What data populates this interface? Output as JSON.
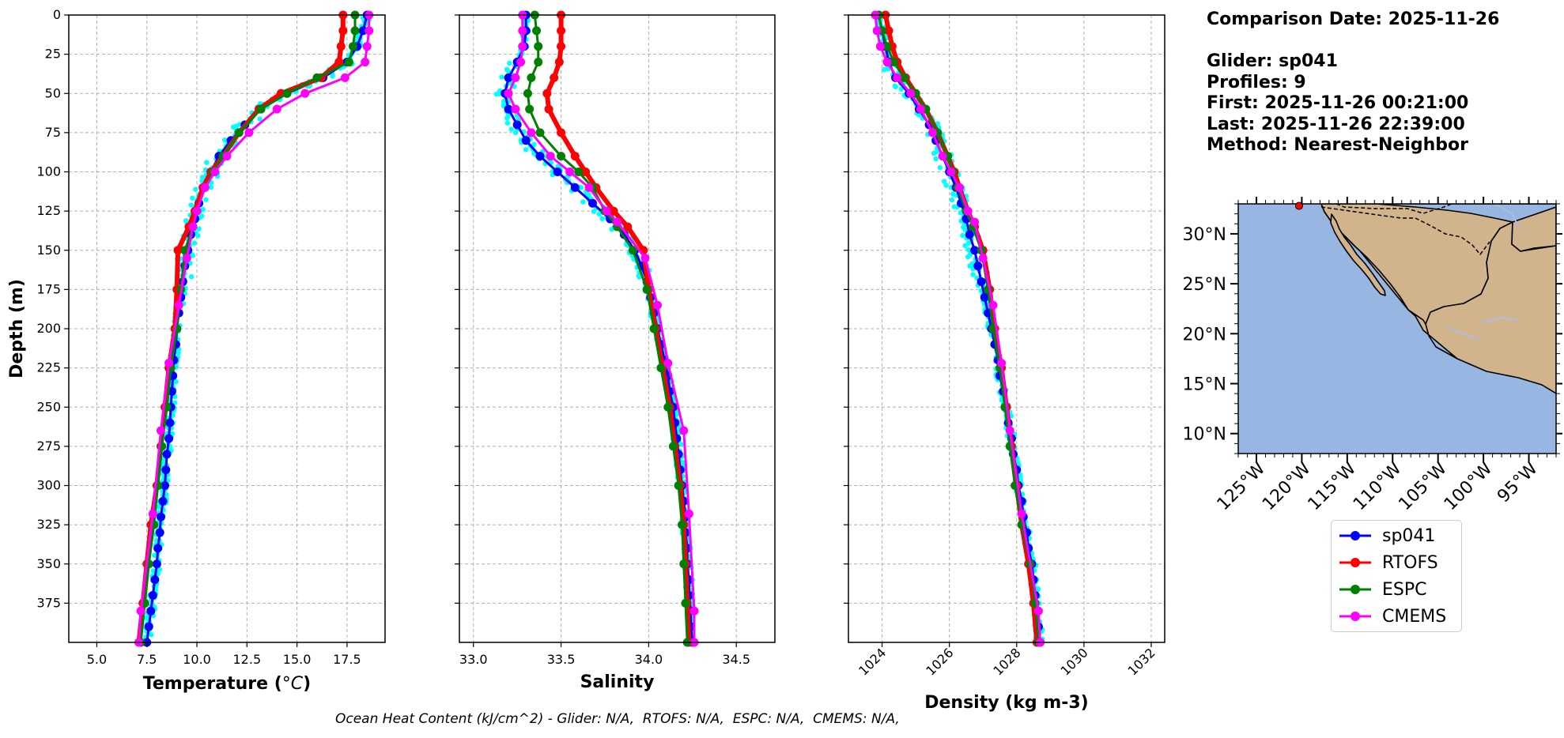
{
  "info": {
    "comparison_date": "Comparison Date: 2025-11-26",
    "glider": "Glider: sp041",
    "profiles": "Profiles: 9",
    "first": "First: 2025-11-26 00:21:00",
    "last": "Last: 2025-11-26 22:39:00",
    "method": "Method: Nearest-Neighbor"
  },
  "footer": "Ocean Heat Content (kJ/cm^2) - Glider: N/A,  RTOFS: N/A,  ESPC: N/A,  CMEMS: N/A,",
  "colors": {
    "sp041": "#0000ff",
    "sp041_raw": "#00ffff",
    "rtofs": "#ff0000",
    "espc": "#008000",
    "cmems": "#ff00ff",
    "ocean": "#97b6e1",
    "land": "#d2b48c",
    "grid": "#b0b0b0"
  },
  "legend": [
    {
      "label": "sp041",
      "color": "#0000ff"
    },
    {
      "label": "RTOFS",
      "color": "#ff0000"
    },
    {
      "label": "ESPC",
      "color": "#008000"
    },
    {
      "label": "CMEMS",
      "color": "#ff00ff"
    }
  ],
  "chart_data": [
    {
      "type": "line",
      "xlabel": "Temperature (°C)",
      "ylabel": "Depth (m)",
      "xlim": [
        3.6,
        19.4
      ],
      "ylim": [
        400,
        0
      ],
      "xticks": [
        5.0,
        7.5,
        10.0,
        12.5,
        15.0,
        17.5
      ],
      "xtick_labels": [
        "5.0",
        "7.5",
        "10.0",
        "12.5",
        "15.0",
        "17.5"
      ],
      "yticks": [
        0,
        25,
        50,
        75,
        100,
        125,
        150,
        175,
        200,
        225,
        250,
        275,
        300,
        325,
        350,
        375
      ],
      "grid": true,
      "series": [
        {
          "name": "sp041",
          "depth": [
            0,
            10,
            20,
            30,
            40,
            50,
            60,
            70,
            80,
            90,
            100,
            110,
            120,
            130,
            140,
            150,
            160,
            170,
            180,
            190,
            200,
            210,
            220,
            230,
            240,
            250,
            260,
            270,
            280,
            290,
            300,
            310,
            320,
            330,
            340,
            350,
            360,
            370,
            380,
            390,
            400
          ],
          "values": [
            18.5,
            18.3,
            18.0,
            17.5,
            16.3,
            14.5,
            13.2,
            12.4,
            11.7,
            11.1,
            10.7,
            10.4,
            10.1,
            9.9,
            9.7,
            9.55,
            9.4,
            9.3,
            9.2,
            9.1,
            9.0,
            8.95,
            8.85,
            8.8,
            8.75,
            8.7,
            8.65,
            8.6,
            8.5,
            8.45,
            8.4,
            8.3,
            8.2,
            8.15,
            8.05,
            8.0,
            7.9,
            7.8,
            7.7,
            7.6,
            7.5
          ]
        },
        {
          "name": "RTOFS",
          "depth": [
            0,
            10,
            20,
            30,
            40,
            50,
            60,
            75,
            90,
            100,
            110,
            125,
            135,
            150,
            175,
            200,
            225,
            250,
            275,
            300,
            325,
            350,
            375,
            400
          ],
          "values": [
            17.3,
            17.3,
            17.2,
            17.1,
            16.2,
            14.2,
            13.1,
            12.1,
            11.3,
            10.7,
            10.3,
            9.9,
            9.6,
            9.05,
            9.0,
            8.9,
            8.6,
            8.4,
            8.2,
            8.0,
            7.7,
            7.5,
            7.3,
            7.1
          ]
        },
        {
          "name": "ESPC",
          "depth": [
            0,
            10,
            20,
            30,
            40,
            50,
            60,
            75,
            90,
            100,
            110,
            125,
            135,
            150,
            175,
            200,
            225,
            250,
            275,
            300,
            325,
            350,
            375,
            400
          ],
          "values": [
            17.9,
            17.9,
            17.8,
            17.6,
            16.0,
            14.5,
            13.2,
            12.1,
            11.3,
            10.8,
            10.4,
            10.0,
            9.8,
            9.4,
            9.2,
            9.0,
            8.7,
            8.5,
            8.25,
            8.05,
            7.85,
            7.6,
            7.4,
            7.2
          ]
        },
        {
          "name": "CMEMS",
          "depth": [
            0,
            10,
            20,
            30,
            40,
            50,
            60,
            75,
            90,
            100,
            110,
            125,
            135,
            155,
            185,
            222,
            265,
            318,
            380,
            400
          ],
          "values": [
            18.6,
            18.6,
            18.5,
            18.4,
            17.4,
            15.4,
            14.0,
            12.6,
            11.5,
            10.9,
            10.4,
            10.0,
            9.8,
            9.5,
            9.1,
            8.6,
            8.2,
            7.8,
            7.2,
            7.1
          ]
        }
      ]
    },
    {
      "type": "line",
      "xlabel": "Salinity",
      "ylabel": "",
      "xlim": [
        32.92,
        34.72
      ],
      "ylim": [
        400,
        0
      ],
      "xticks": [
        33.0,
        33.5,
        34.0,
        34.5
      ],
      "xtick_labels": [
        "33.0",
        "33.5",
        "34.0",
        "34.5"
      ],
      "grid": true,
      "series": [
        {
          "name": "sp041",
          "depth": [
            0,
            10,
            20,
            30,
            40,
            50,
            60,
            70,
            80,
            90,
            100,
            110,
            120,
            130,
            140,
            150,
            160,
            170,
            180,
            190,
            200,
            210,
            220,
            230,
            240,
            250,
            260,
            270,
            280,
            290,
            300,
            310,
            320,
            330,
            340,
            350,
            360,
            370,
            380,
            390,
            400
          ],
          "values": [
            33.3,
            33.3,
            33.29,
            33.25,
            33.2,
            33.18,
            33.2,
            33.25,
            33.3,
            33.38,
            33.48,
            33.58,
            33.68,
            33.78,
            33.86,
            33.92,
            33.96,
            33.99,
            34.01,
            34.03,
            34.05,
            34.07,
            34.09,
            34.11,
            34.12,
            34.14,
            34.15,
            34.16,
            34.17,
            34.18,
            34.19,
            34.2,
            34.21,
            34.21,
            34.22,
            34.22,
            34.23,
            34.23,
            34.24,
            34.24,
            34.25
          ]
        },
        {
          "name": "RTOFS",
          "depth": [
            0,
            10,
            20,
            30,
            40,
            50,
            60,
            75,
            90,
            100,
            110,
            125,
            135,
            150,
            175,
            200,
            225,
            250,
            275,
            300,
            325,
            350,
            375,
            400
          ],
          "values": [
            33.5,
            33.5,
            33.5,
            33.49,
            33.46,
            33.42,
            33.43,
            33.5,
            33.58,
            33.64,
            33.7,
            33.8,
            33.88,
            33.97,
            34.0,
            34.04,
            34.08,
            34.12,
            34.15,
            34.18,
            34.2,
            34.21,
            34.22,
            34.23
          ]
        },
        {
          "name": "ESPC",
          "depth": [
            0,
            10,
            20,
            30,
            40,
            50,
            60,
            75,
            90,
            100,
            110,
            125,
            135,
            150,
            175,
            200,
            225,
            250,
            275,
            300,
            325,
            350,
            375,
            400
          ],
          "values": [
            33.35,
            33.36,
            33.37,
            33.37,
            33.33,
            33.31,
            33.32,
            33.38,
            33.5,
            33.6,
            33.68,
            33.75,
            33.82,
            33.91,
            33.99,
            34.03,
            34.07,
            34.11,
            34.14,
            34.17,
            34.19,
            34.2,
            34.21,
            34.22
          ]
        },
        {
          "name": "CMEMS",
          "depth": [
            0,
            10,
            20,
            30,
            40,
            50,
            60,
            75,
            90,
            100,
            110,
            125,
            132,
            155,
            185,
            222,
            265,
            318,
            380,
            400
          ],
          "values": [
            33.28,
            33.28,
            33.28,
            33.27,
            33.24,
            33.2,
            33.24,
            33.33,
            33.44,
            33.55,
            33.66,
            33.76,
            33.82,
            33.98,
            34.05,
            34.11,
            34.2,
            34.23,
            34.26,
            34.26
          ]
        }
      ]
    },
    {
      "type": "line",
      "xlabel": "Density (kg m-3)",
      "ylabel": "",
      "xlim": [
        1023.0,
        1032.4
      ],
      "ylim": [
        400,
        0
      ],
      "xticks": [
        1024,
        1026,
        1028,
        1030,
        1032
      ],
      "xtick_labels": [
        "1024",
        "1026",
        "1028",
        "1030",
        "1032"
      ],
      "grid": true,
      "series": [
        {
          "name": "sp041",
          "depth": [
            0,
            10,
            20,
            30,
            40,
            50,
            60,
            70,
            80,
            90,
            100,
            110,
            120,
            130,
            140,
            150,
            160,
            170,
            180,
            190,
            200,
            210,
            220,
            230,
            240,
            250,
            260,
            270,
            280,
            290,
            300,
            310,
            320,
            330,
            340,
            350,
            360,
            370,
            380,
            390,
            400
          ],
          "values": [
            1023.9,
            1024.0,
            1024.1,
            1024.2,
            1024.4,
            1024.8,
            1025.1,
            1025.4,
            1025.6,
            1025.8,
            1026.0,
            1026.2,
            1026.35,
            1026.5,
            1026.6,
            1026.75,
            1026.85,
            1026.95,
            1027.05,
            1027.15,
            1027.25,
            1027.35,
            1027.45,
            1027.5,
            1027.6,
            1027.7,
            1027.75,
            1027.85,
            1027.9,
            1028.0,
            1028.05,
            1028.15,
            1028.2,
            1028.3,
            1028.35,
            1028.45,
            1028.5,
            1028.55,
            1028.6,
            1028.65,
            1028.7
          ]
        },
        {
          "name": "RTOFS",
          "depth": [
            0,
            10,
            20,
            30,
            40,
            50,
            60,
            75,
            90,
            100,
            110,
            125,
            135,
            150,
            175,
            200,
            225,
            250,
            275,
            300,
            325,
            350,
            375,
            400
          ],
          "values": [
            1024.1,
            1024.2,
            1024.3,
            1024.45,
            1024.7,
            1025.0,
            1025.3,
            1025.65,
            1025.95,
            1026.15,
            1026.3,
            1026.55,
            1026.75,
            1027.0,
            1027.2,
            1027.35,
            1027.55,
            1027.7,
            1027.85,
            1028.0,
            1028.15,
            1028.35,
            1028.5,
            1028.6
          ]
        },
        {
          "name": "ESPC",
          "depth": [
            0,
            10,
            20,
            30,
            40,
            50,
            60,
            75,
            90,
            100,
            110,
            125,
            135,
            150,
            175,
            200,
            225,
            250,
            275,
            300,
            325,
            350,
            375,
            400
          ],
          "values": [
            1023.9,
            1024.0,
            1024.15,
            1024.35,
            1024.65,
            1025.0,
            1025.3,
            1025.65,
            1025.95,
            1026.1,
            1026.25,
            1026.5,
            1026.7,
            1026.95,
            1027.15,
            1027.3,
            1027.5,
            1027.65,
            1027.8,
            1027.95,
            1028.15,
            1028.4,
            1028.55,
            1028.65
          ]
        },
        {
          "name": "CMEMS",
          "depth": [
            0,
            10,
            20,
            30,
            40,
            50,
            60,
            75,
            90,
            100,
            110,
            125,
            132,
            155,
            185,
            222,
            265,
            318,
            380,
            400
          ],
          "values": [
            1023.8,
            1023.85,
            1023.95,
            1024.15,
            1024.45,
            1024.85,
            1025.15,
            1025.5,
            1025.8,
            1026.05,
            1026.3,
            1026.55,
            1026.75,
            1027.0,
            1027.3,
            1027.55,
            1027.8,
            1028.15,
            1028.65,
            1028.7
          ]
        }
      ]
    }
  ],
  "map": {
    "lon_range": [
      -127,
      -92
    ],
    "lat_range": [
      8,
      33
    ],
    "xtick_labels": [
      "125°W",
      "120°W",
      "115°W",
      "110°W",
      "105°W",
      "100°W",
      "95°W"
    ],
    "xticks": [
      -125,
      -120,
      -115,
      -110,
      -105,
      -100,
      -95
    ],
    "ytick_labels": [
      "30°N",
      "25°N",
      "20°N",
      "15°N",
      "10°N"
    ],
    "yticks": [
      30,
      25,
      20,
      15,
      10
    ],
    "glider_position": {
      "lon": -120.3,
      "lat": 32.8
    }
  }
}
